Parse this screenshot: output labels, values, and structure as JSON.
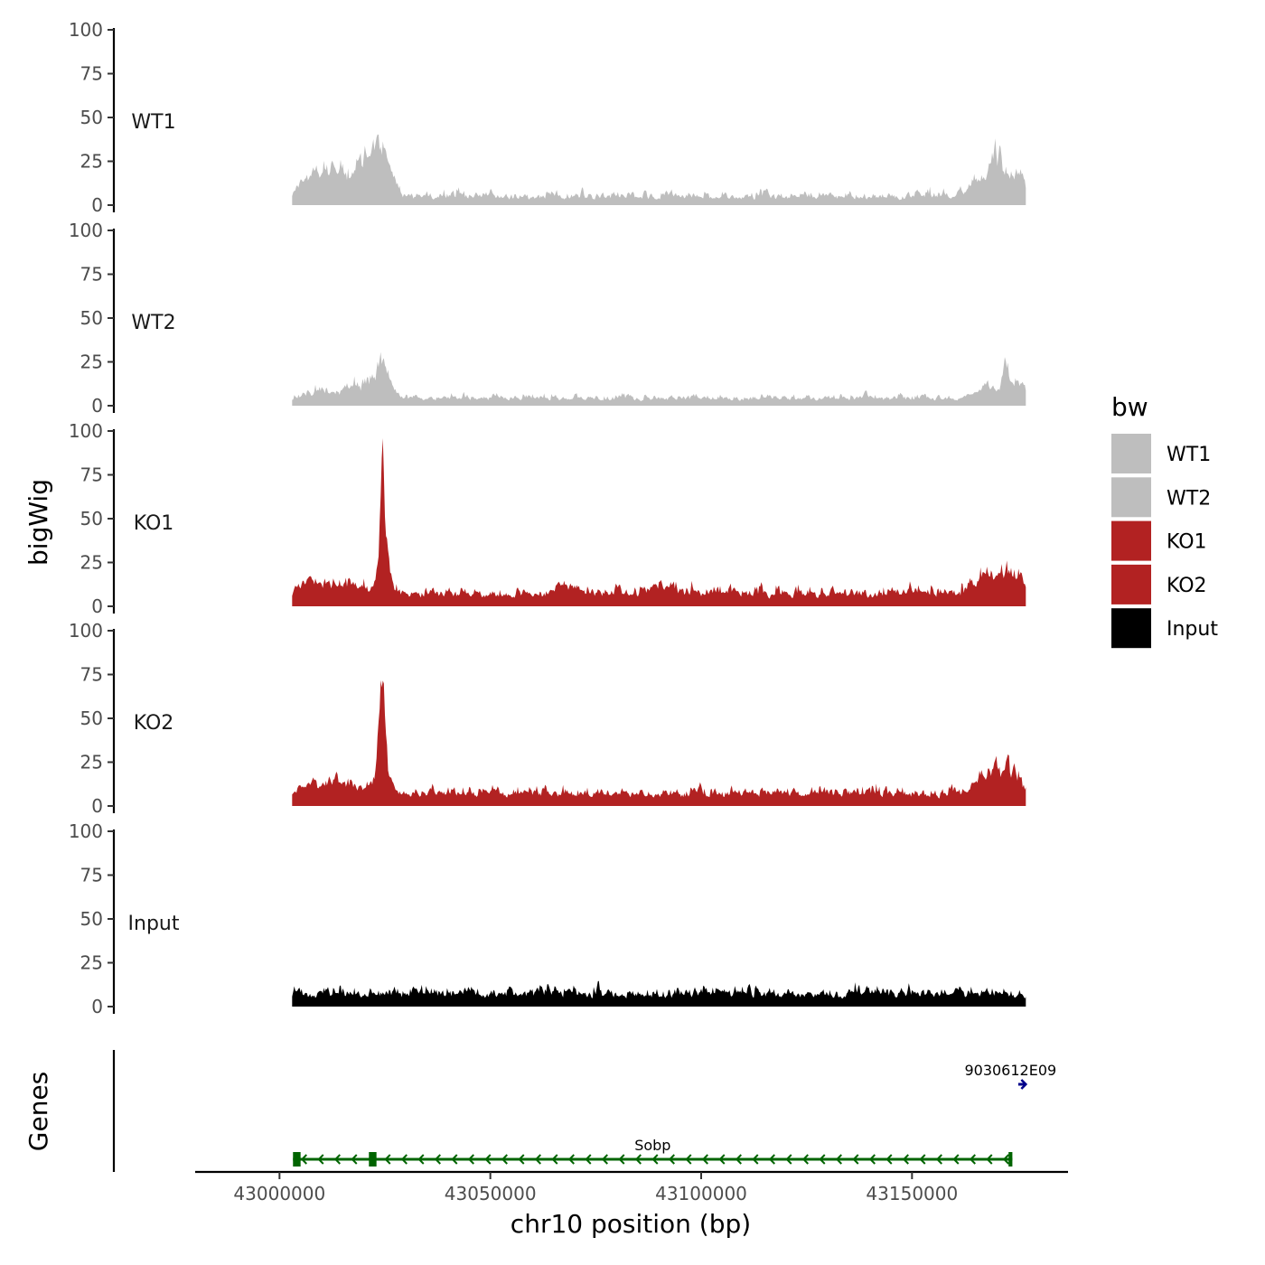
{
  "chart_data": {
    "type": "area",
    "ylabel": "bigWig",
    "xlabel": "chr10 position (bp)",
    "xlim": [
      42980000,
      43187000
    ],
    "signal_range": [
      43003000,
      43177000
    ],
    "ylim": [
      0,
      100
    ],
    "y_ticks": [
      0,
      25,
      50,
      75,
      100
    ],
    "y_tick_labels": [
      "0",
      "25",
      "50",
      "75",
      "100"
    ],
    "x_ticks": [
      43000000,
      43050000,
      43100000,
      43150000
    ],
    "x_tick_labels": [
      "43000000",
      "43050000",
      "43100000",
      "43150000"
    ],
    "legend": {
      "title": "bw",
      "position": "right",
      "entries": [
        {
          "label": "WT1",
          "color": "#bebebe"
        },
        {
          "label": "WT2",
          "color": "#bebebe"
        },
        {
          "label": "KO1",
          "color": "#b22222"
        },
        {
          "label": "KO2",
          "color": "#b22222"
        },
        {
          "label": "Input",
          "color": "#000000"
        }
      ]
    },
    "series": [
      {
        "name": "WT1",
        "color": "#bebebe",
        "baseline": 3,
        "noise": 4,
        "seed": 11,
        "peaks": [
          [
            43006000,
            5000,
            8
          ],
          [
            43013000,
            5000,
            14
          ],
          [
            43020000,
            3000,
            18
          ],
          [
            43024000,
            2500,
            28
          ],
          [
            43027000,
            1500,
            5
          ],
          [
            43165000,
            3000,
            8
          ],
          [
            43170000,
            2500,
            23
          ],
          [
            43175000,
            2500,
            12
          ]
        ]
      },
      {
        "name": "WT2",
        "color": "#bebebe",
        "baseline": 3,
        "noise": 3,
        "seed": 23,
        "peaks": [
          [
            43010000,
            5000,
            4
          ],
          [
            43019000,
            4000,
            8
          ],
          [
            43024000,
            1800,
            18
          ],
          [
            43026500,
            1200,
            6
          ],
          [
            43168000,
            4000,
            8
          ],
          [
            43172000,
            1000,
            18
          ],
          [
            43176000,
            2500,
            8
          ]
        ]
      },
      {
        "name": "KO1",
        "color": "#b22222",
        "baseline": 5,
        "noise": 5,
        "seed": 37,
        "peaks": [
          [
            43008000,
            5000,
            6
          ],
          [
            43016000,
            4000,
            6
          ],
          [
            43024300,
            700,
            68
          ],
          [
            43024500,
            2000,
            14
          ],
          [
            43068000,
            4000,
            4
          ],
          [
            43090000,
            4000,
            4
          ],
          [
            43167000,
            3000,
            10
          ],
          [
            43173000,
            3500,
            16
          ]
        ]
      },
      {
        "name": "KO2",
        "color": "#b22222",
        "baseline": 5,
        "noise": 5,
        "seed": 53,
        "peaks": [
          [
            43008000,
            5000,
            6
          ],
          [
            43016000,
            4000,
            6
          ],
          [
            43024000,
            700,
            58
          ],
          [
            43024300,
            2200,
            18
          ],
          [
            43167000,
            3000,
            9
          ],
          [
            43172000,
            3500,
            14
          ]
        ]
      },
      {
        "name": "Input",
        "color": "#000000",
        "baseline": 5,
        "noise": 5,
        "seed": 71,
        "peaks": []
      }
    ],
    "genes_panel": {
      "ylabel": "Genes",
      "genes": [
        {
          "name": "Sobp",
          "start": 43003200,
          "end": 43173800,
          "strand": "-",
          "color": "#006400",
          "exons": [
            [
              43003200,
              43005000
            ],
            [
              43021200,
              43023000
            ],
            [
              43172900,
              43173800
            ]
          ]
        },
        {
          "name": "9030612E09",
          "start": 43175200,
          "end": 43177000,
          "strand": "+",
          "color": "#00008b",
          "exons": []
        }
      ]
    }
  }
}
